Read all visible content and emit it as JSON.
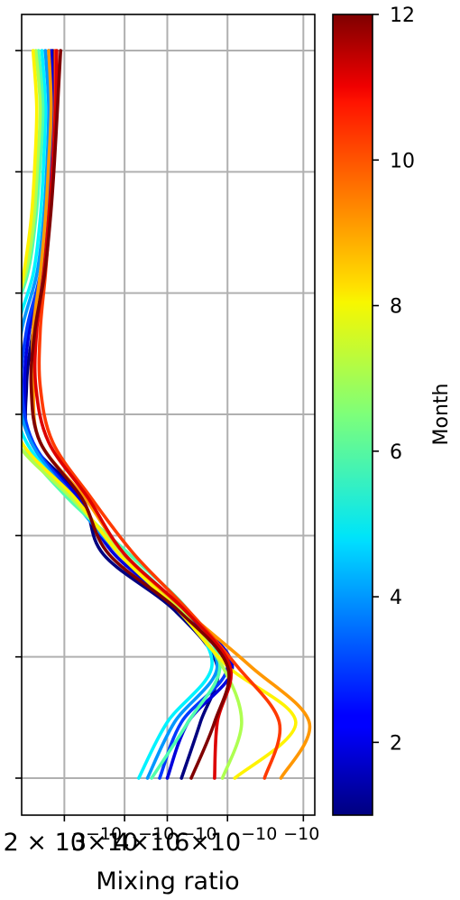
{
  "chart_data": {
    "type": "line",
    "xlabel": "Mixing ratio",
    "ylabel": "",
    "x_scale": "log",
    "xlim": [
      1.5e-10,
      1.08e-09
    ],
    "grid": true,
    "x_tick_values": [
      2e-10,
      3e-10,
      4e-10,
      6e-10,
      1e-09
    ],
    "x_tick_labels": [
      {
        "main": "2 × 10",
        "exp": "−10"
      },
      {
        "main": "3×10",
        "exp": "−10"
      },
      {
        "main": "4×10",
        "exp": "−10"
      },
      {
        "main": "6×10",
        "exp": "−10"
      },
      {
        "main": "",
        "exp": "−10"
      }
    ],
    "levels": 7,
    "colorbar": {
      "label": "Month",
      "cmap": "jet",
      "range": [
        1,
        12
      ],
      "ticks": [
        2,
        4,
        6,
        8,
        10,
        12
      ]
    },
    "series": [
      {
        "month": 1,
        "x": [
          4.4e-10,
          5e-10,
          5.6e-10,
          4.2e-10,
          2.6e-10,
          2.25e-10,
          1.6e-10,
          1.55e-10,
          1.62e-10,
          1.73e-10,
          1.8e-10,
          1.84e-10,
          1.85e-10,
          1.85e-10
        ]
      },
      {
        "month": 2,
        "x": [
          4e-10,
          4.6e-10,
          6.2e-10,
          4.4e-10,
          2.8e-10,
          2.2e-10,
          1.6e-10,
          1.53e-10,
          1.58e-10,
          1.72e-10,
          1.79e-10,
          1.83e-10,
          1.85e-10,
          1.83e-10
        ]
      },
      {
        "month": 3,
        "x": [
          3.8e-10,
          4.4e-10,
          6e-10,
          4.5e-10,
          2.9e-10,
          2.15e-10,
          1.62e-10,
          1.5e-10,
          1.55e-10,
          1.7e-10,
          1.77e-10,
          1.81e-10,
          1.83e-10,
          1.8e-10
        ]
      },
      {
        "month": 4,
        "x": [
          3.5e-10,
          4.2e-10,
          5.6e-10,
          4.3e-10,
          2.9e-10,
          2.1e-10,
          1.6e-10,
          1.45e-10,
          1.5e-10,
          1.66e-10,
          1.74e-10,
          1.78e-10,
          1.8e-10,
          1.76e-10
        ]
      },
      {
        "month": 5,
        "x": [
          3.3e-10,
          4e-10,
          5.4e-10,
          4.4e-10,
          3e-10,
          2.1e-10,
          1.55e-10,
          1.4e-10,
          1.45e-10,
          1.62e-10,
          1.7e-10,
          1.74e-10,
          1.76e-10,
          1.72e-10
        ]
      },
      {
        "month": 6,
        "x": [
          3.6e-10,
          4.6e-10,
          5.7e-10,
          4.6e-10,
          3.1e-10,
          2.05e-10,
          1.5e-10,
          1.35e-10,
          1.38e-10,
          1.56e-10,
          1.65e-10,
          1.7e-10,
          1.73e-10,
          1.68e-10
        ]
      },
      {
        "month": 7,
        "x": [
          5.8e-10,
          6.6e-10,
          5.8e-10,
          4.4e-10,
          3e-10,
          2.1e-10,
          1.45e-10,
          1.33e-10,
          1.36e-10,
          1.54e-10,
          1.63e-10,
          1.67e-10,
          1.7e-10,
          1.65e-10
        ]
      },
      {
        "month": 8,
        "x": [
          6.3e-10,
          9.5e-10,
          6e-10,
          4.3e-10,
          2.9e-10,
          2.15e-10,
          1.5e-10,
          1.4e-10,
          1.42e-10,
          1.52e-10,
          1.6e-10,
          1.64e-10,
          1.66e-10,
          1.62e-10
        ]
      },
      {
        "month": 9,
        "x": [
          8.6e-10,
          1.04e-09,
          7e-10,
          4.5e-10,
          3e-10,
          2.3e-10,
          1.7e-10,
          1.62e-10,
          1.62e-10,
          1.7e-10,
          1.76e-10,
          1.8e-10,
          1.83e-10,
          1.8e-10
        ]
      },
      {
        "month": 10,
        "x": [
          7.7e-10,
          8.5e-10,
          6.4e-10,
          4.6e-10,
          3.2e-10,
          2.4e-10,
          1.85e-10,
          1.7e-10,
          1.7e-10,
          1.76e-10,
          1.81e-10,
          1.85e-10,
          1.88e-10,
          1.88e-10
        ]
      },
      {
        "month": 11,
        "x": [
          5.5e-10,
          5.6e-10,
          6.1e-10,
          4.5e-10,
          3e-10,
          2.35e-10,
          1.8e-10,
          1.65e-10,
          1.66e-10,
          1.74e-10,
          1.8e-10,
          1.85e-10,
          1.89e-10,
          1.9e-10
        ]
      },
      {
        "month": 12,
        "x": [
          4.7e-10,
          5.5e-10,
          6e-10,
          4.3e-10,
          2.7e-10,
          2.25e-10,
          1.7e-10,
          1.6e-10,
          1.64e-10,
          1.75e-10,
          1.82e-10,
          1.87e-10,
          1.91e-10,
          1.95e-10
        ]
      }
    ]
  }
}
